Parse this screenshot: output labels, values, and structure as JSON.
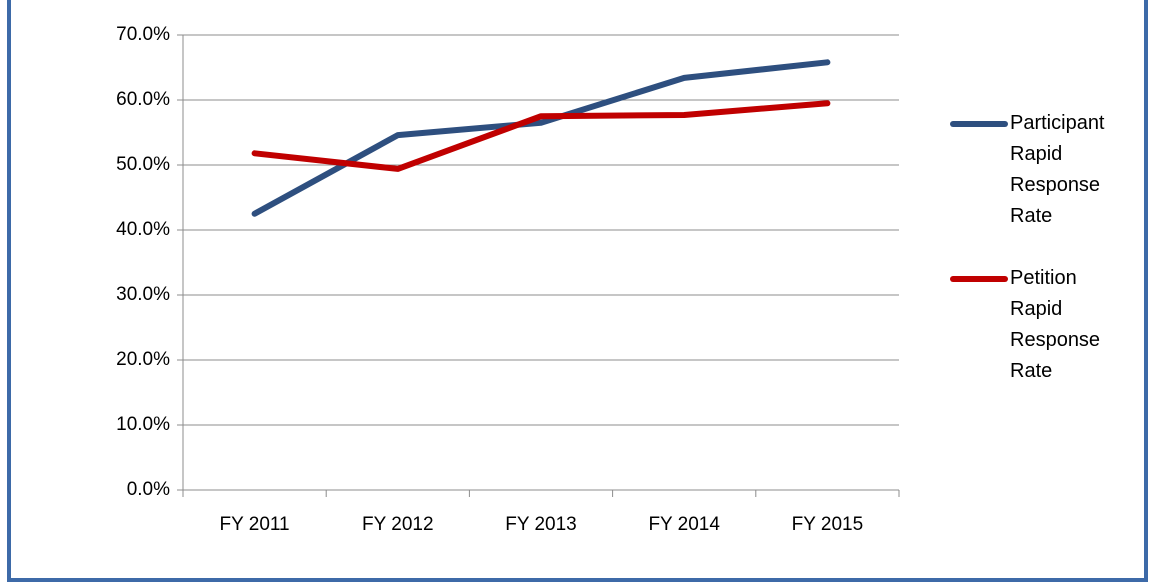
{
  "chart_data": {
    "type": "line",
    "categories": [
      "FY 2011",
      "FY 2012",
      "FY 2013",
      "FY 2014",
      "FY 2015"
    ],
    "series": [
      {
        "name": "Participant Rapid Response Rate",
        "color": "#2e4f7f",
        "values": [
          42.5,
          54.6,
          56.5,
          63.4,
          65.8
        ]
      },
      {
        "name": "Petition Rapid Response Rate",
        "color": "#c00000",
        "values": [
          51.8,
          49.4,
          57.5,
          57.7,
          59.5
        ]
      }
    ],
    "ylim": [
      0,
      70
    ],
    "yticks": [
      {
        "value": 0,
        "label": "0.0%"
      },
      {
        "value": 10,
        "label": "10.0%"
      },
      {
        "value": 20,
        "label": "20.0%"
      },
      {
        "value": 30,
        "label": "30.0%"
      },
      {
        "value": 40,
        "label": "40.0%"
      },
      {
        "value": 50,
        "label": "50.0%"
      },
      {
        "value": 60,
        "label": "60.0%"
      },
      {
        "value": 70,
        "label": "70.0%"
      }
    ],
    "grid": true,
    "legend": "right"
  }
}
